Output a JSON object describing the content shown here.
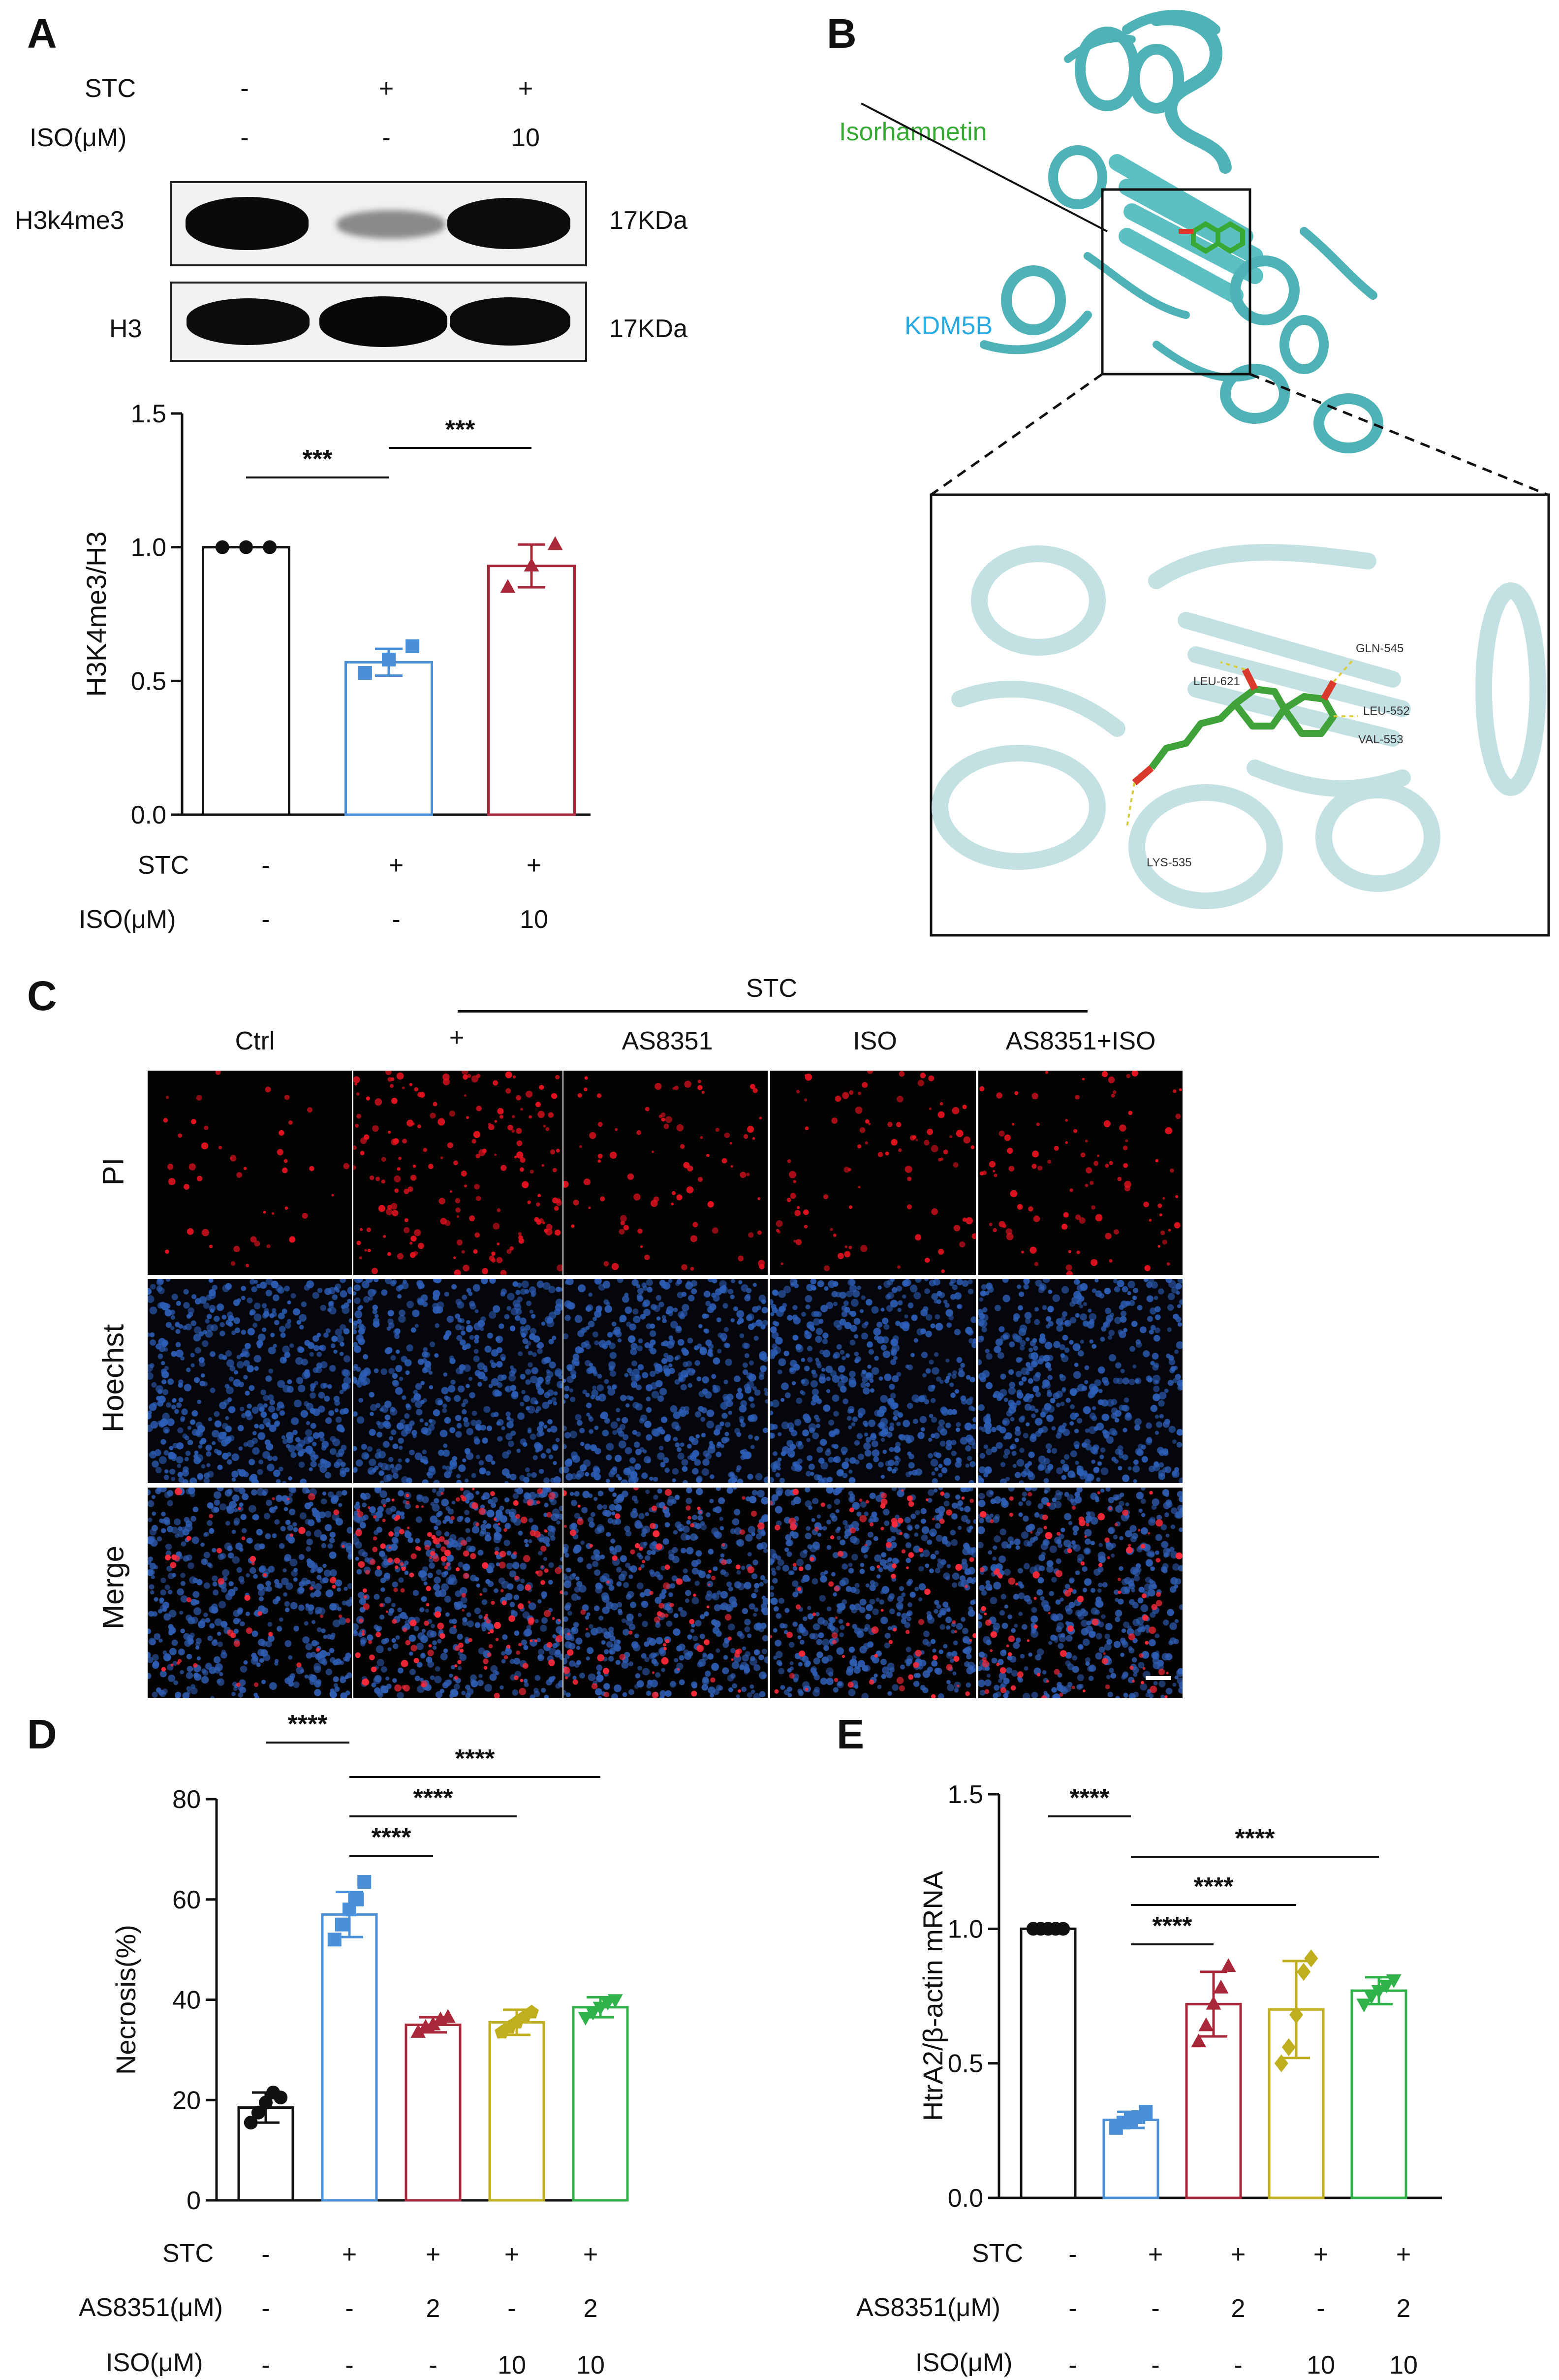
{
  "panel_labels": {
    "a": "A",
    "b": "B",
    "c": "C",
    "d": "D",
    "e": "E"
  },
  "panelA": {
    "blot_conditions": {
      "rows": [
        "STC",
        "ISO(μM)"
      ],
      "values": [
        [
          "-",
          "+",
          "+"
        ],
        [
          "-",
          "-",
          "10"
        ]
      ]
    },
    "blots": [
      {
        "name": "H3k4me3",
        "size": "17KDa"
      },
      {
        "name": "H3",
        "size": "17KDa"
      }
    ],
    "conditions": {
      "rows": [
        "STC",
        "ISO(μM)"
      ],
      "values": [
        [
          "-",
          "+",
          "+"
        ],
        [
          "-",
          "-",
          "10"
        ]
      ]
    }
  },
  "panelB": {
    "ligand_label": "Isorhamnetin",
    "protein_label": "KDM5B",
    "residues": [
      "GLN-545",
      "LEU-621",
      "LEU-552",
      "VAL-553",
      "LYS-535"
    ],
    "colors": {
      "ligand": "#39a935",
      "protein": "#29abe2",
      "cartoon": "#4fb2b6"
    }
  },
  "panelC": {
    "group_header": "STC",
    "columns": [
      "Ctrl",
      "+",
      "AS8351",
      "ISO",
      "AS8351+ISO"
    ],
    "rows": [
      "PI",
      "Hoechst",
      "Merge"
    ],
    "scale_bar": "scale-bar"
  },
  "panelD": {
    "conditions": {
      "rows": [
        "STC",
        "AS8351(μM)",
        "ISO(μM)"
      ],
      "values": [
        [
          "-",
          "+",
          "+",
          "+",
          "+"
        ],
        [
          "-",
          "-",
          "2",
          "-",
          "2"
        ],
        [
          "-",
          "-",
          "-",
          "10",
          "10"
        ]
      ]
    }
  },
  "panelE": {
    "conditions": {
      "rows": [
        "STC",
        "AS8351(μM)",
        "ISO(μM)"
      ],
      "values": [
        [
          "-",
          "+",
          "+",
          "+",
          "+"
        ],
        [
          "-",
          "-",
          "2",
          "-",
          "2"
        ],
        [
          "-",
          "-",
          "-",
          "10",
          "10"
        ]
      ]
    }
  },
  "chart_data": [
    {
      "id": "A",
      "type": "bar",
      "ylabel": "H3K4me3/H3",
      "ylim": [
        0,
        1.5
      ],
      "yticks": [
        "0.0",
        "0.5",
        "1.0",
        "1.5"
      ],
      "categories": [
        "Ctrl",
        "STC",
        "STC+ISO"
      ],
      "values": [
        1.0,
        0.57,
        0.93
      ],
      "errors": [
        0.0,
        0.05,
        0.08
      ],
      "points": [
        [
          1.0,
          1.0,
          1.0
        ],
        [
          0.53,
          0.58,
          0.63
        ],
        [
          0.85,
          0.93,
          1.01
        ]
      ],
      "colors": [
        "#111111",
        "#4a90d9",
        "#a8283a"
      ],
      "markers": [
        "circle",
        "square",
        "triangle"
      ],
      "significance": [
        {
          "from": 0,
          "to": 1,
          "label": "***"
        },
        {
          "from": 1,
          "to": 2,
          "label": "***"
        }
      ]
    },
    {
      "id": "D",
      "type": "bar",
      "ylabel": "Necrosis(%)",
      "ylim": [
        0,
        80
      ],
      "yticks": [
        "0",
        "20",
        "40",
        "60",
        "80"
      ],
      "categories": [
        "Ctrl",
        "STC",
        "STC+AS8351",
        "STC+ISO",
        "STC+AS8351+ISO"
      ],
      "values": [
        18.5,
        57.0,
        35.0,
        35.5,
        38.5
      ],
      "errors": [
        3.0,
        4.5,
        1.5,
        2.5,
        2.0
      ],
      "points": [
        [
          15.5,
          17.5,
          19.5,
          21.5,
          20.5
        ],
        [
          52.0,
          55.0,
          58.0,
          60.0,
          63.5
        ],
        [
          33.5,
          34.5,
          35.0,
          36.0,
          36.5
        ],
        [
          33.5,
          34.5,
          35.5,
          36.5,
          37.5
        ],
        [
          36.5,
          37.5,
          38.5,
          39.5,
          40.0
        ]
      ],
      "colors": [
        "#111111",
        "#4a90d9",
        "#a8283a",
        "#bfae1e",
        "#2fb24a"
      ],
      "markers": [
        "circle",
        "square",
        "triangle",
        "pentagon",
        "triangle-down"
      ],
      "significance": [
        {
          "from": 0,
          "to": 1,
          "label": "****"
        },
        {
          "from": 1,
          "to": 2,
          "label": "****"
        },
        {
          "from": 1,
          "to": 3,
          "label": "****"
        },
        {
          "from": 1,
          "to": 4,
          "label": "****"
        }
      ]
    },
    {
      "id": "E",
      "type": "bar",
      "ylabel": "HtrA2/β-actin mRNA",
      "ylim": [
        0,
        1.5
      ],
      "yticks": [
        "0.0",
        "0.5",
        "1.0",
        "1.5"
      ],
      "categories": [
        "Ctrl",
        "STC",
        "STC+AS8351",
        "STC+ISO",
        "STC+AS8351+ISO"
      ],
      "values": [
        1.0,
        0.29,
        0.72,
        0.7,
        0.77
      ],
      "errors": [
        0.0,
        0.03,
        0.12,
        0.18,
        0.05
      ],
      "points": [
        [
          1.0,
          1.0,
          1.0,
          1.0,
          1.0
        ],
        [
          0.26,
          0.28,
          0.29,
          0.3,
          0.32
        ],
        [
          0.58,
          0.64,
          0.72,
          0.78,
          0.86
        ],
        [
          0.5,
          0.56,
          0.68,
          0.84,
          0.89
        ],
        [
          0.72,
          0.75,
          0.77,
          0.79,
          0.81
        ]
      ],
      "colors": [
        "#111111",
        "#4a90d9",
        "#a8283a",
        "#bfae1e",
        "#2fb24a"
      ],
      "markers": [
        "circle",
        "square",
        "triangle",
        "diamond",
        "triangle-down"
      ],
      "significance": [
        {
          "from": 0,
          "to": 1,
          "label": "****"
        },
        {
          "from": 1,
          "to": 2,
          "label": "****"
        },
        {
          "from": 1,
          "to": 3,
          "label": "****"
        },
        {
          "from": 1,
          "to": 4,
          "label": "****"
        }
      ]
    }
  ]
}
